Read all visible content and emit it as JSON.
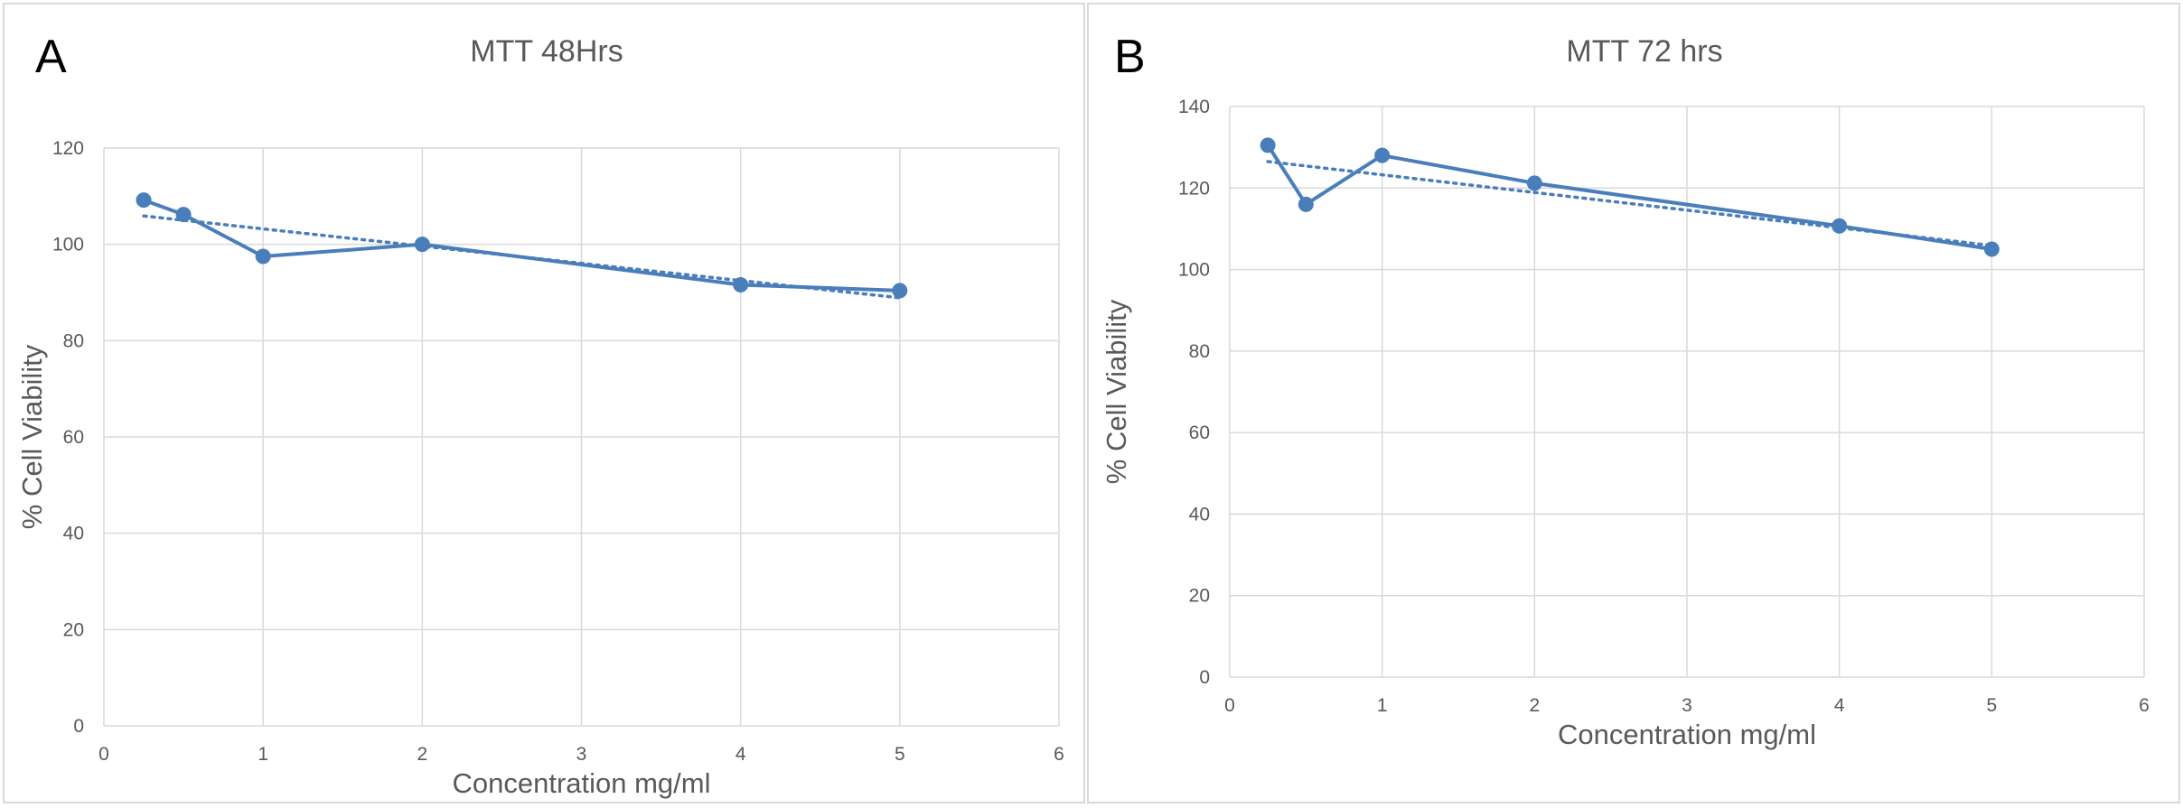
{
  "chart_data": [
    {
      "type": "line",
      "panel_label": "A",
      "title": "MTT 48Hrs",
      "xlabel": "Concentration mg/ml",
      "ylabel": "% Cell Viability",
      "xlim": [
        0,
        6
      ],
      "ylim": [
        0,
        120
      ],
      "xticks": [
        0,
        1,
        2,
        3,
        4,
        5,
        6
      ],
      "yticks": [
        0,
        20,
        40,
        60,
        80,
        100,
        120
      ],
      "grid": true,
      "legend": "none",
      "series": [
        {
          "x": [
            0.25,
            0.5,
            1,
            2,
            4,
            5
          ],
          "y": [
            109.2,
            106.2,
            97.5,
            100,
            91.6,
            90.4
          ],
          "color": "#4a7ebb",
          "marker": "circle"
        }
      ],
      "trendline": {
        "type": "linear",
        "style": "dotted",
        "color": "#4a7ebb",
        "x": [
          0.25,
          5
        ],
        "y": [
          105.9,
          88.9
        ]
      }
    },
    {
      "type": "line",
      "panel_label": "B",
      "title": "MTT 72 hrs",
      "xlabel": "Concentration mg/ml",
      "ylabel": "% Cell Viability",
      "xlim": [
        0,
        6
      ],
      "ylim": [
        0,
        140
      ],
      "xticks": [
        0,
        1,
        2,
        3,
        4,
        5,
        6
      ],
      "yticks": [
        0,
        20,
        40,
        60,
        80,
        100,
        120,
        140
      ],
      "grid": true,
      "legend": "none",
      "series": [
        {
          "x": [
            0.25,
            0.5,
            1,
            2,
            4,
            5
          ],
          "y": [
            130.5,
            116,
            128,
            121.2,
            110.7,
            105
          ],
          "color": "#4a7ebb",
          "marker": "circle"
        }
      ],
      "trendline": {
        "type": "linear",
        "style": "dotted",
        "color": "#4a7ebb",
        "x": [
          0.25,
          5
        ],
        "y": [
          126.5,
          105.9
        ]
      }
    }
  ]
}
